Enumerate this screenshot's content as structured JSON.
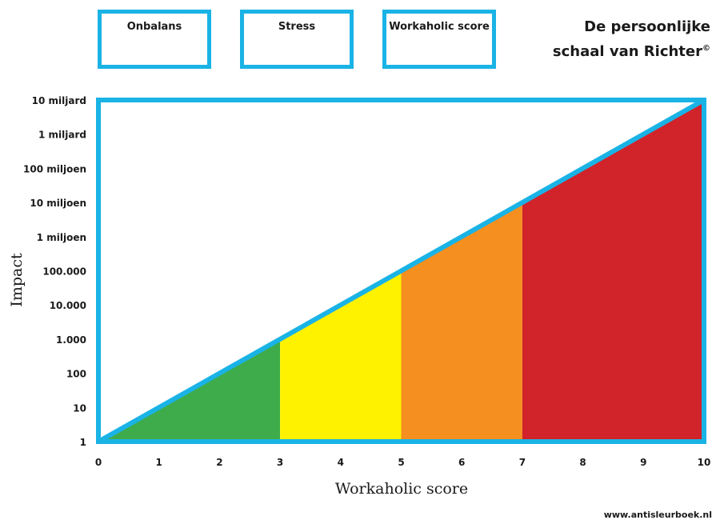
{
  "boxes": [
    "Onbalans",
    "Stress",
    "Workaholic score"
  ],
  "title": {
    "line1": "De persoonlijke",
    "line2": "schaal van Richter",
    "symbol": "©"
  },
  "footer": "www.antisleurboek.nl",
  "chart_data": {
    "type": "area",
    "xlabel": "Workaholic score",
    "ylabel": "Impact",
    "x_ticks": [
      0,
      1,
      2,
      3,
      4,
      5,
      6,
      7,
      8,
      9,
      10
    ],
    "y_ticks": [
      "1",
      "10",
      "100",
      "1.000",
      "10.000",
      "100.000",
      "1 miljoen",
      "10 miljoen",
      "100 miljoen",
      "1 miljard",
      "10 miljard"
    ],
    "xlim": [
      0,
      10
    ],
    "ylim": [
      1,
      10000000000
    ],
    "log_y": true,
    "line": {
      "x": [
        0,
        10
      ],
      "y": [
        1,
        10000000000
      ]
    },
    "zones": [
      {
        "x_start": 0,
        "x_end": 3,
        "color": "#3eac4a"
      },
      {
        "x_start": 3,
        "x_end": 5,
        "color": "#fff200"
      },
      {
        "x_start": 5,
        "x_end": 7,
        "color": "#f58f1f"
      },
      {
        "x_start": 7,
        "x_end": 10,
        "color": "#d1232a"
      }
    ],
    "frame_color": "#1ab3e6",
    "grid": false
  }
}
